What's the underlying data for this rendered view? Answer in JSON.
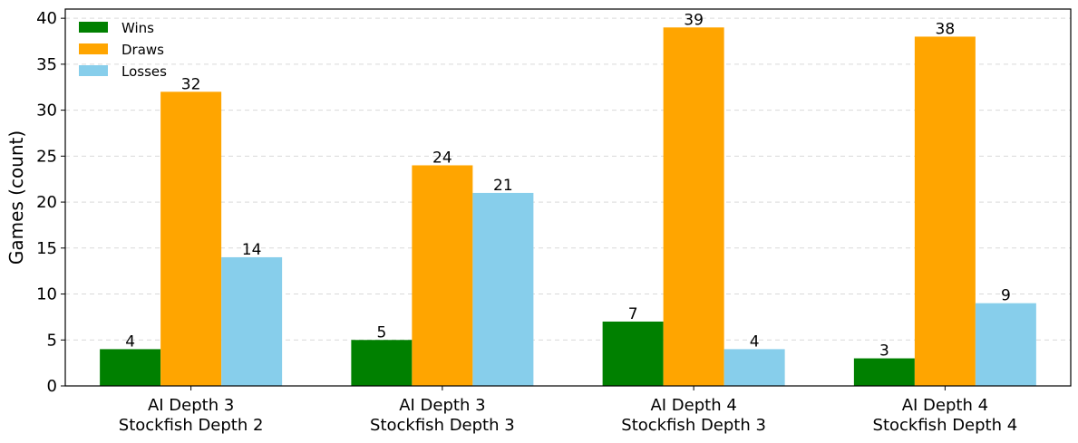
{
  "chart_data": {
    "type": "bar",
    "title": "",
    "xlabel": "",
    "ylabel": "Games (count)",
    "ylim": [
      0,
      41
    ],
    "yticks": [
      0,
      5,
      10,
      15,
      20,
      25,
      30,
      35,
      40
    ],
    "grid": "y-dashed",
    "legend_position": "top-left",
    "categories": [
      [
        "AI Depth 3",
        "Stockfish Depth 2"
      ],
      [
        "AI Depth 3",
        "Stockfish Depth 3"
      ],
      [
        "AI Depth 4",
        "Stockfish Depth 3"
      ],
      [
        "AI Depth 4",
        "Stockfish Depth 4"
      ]
    ],
    "series": [
      {
        "name": "Wins",
        "color": "#008000",
        "values": [
          4,
          5,
          7,
          3
        ]
      },
      {
        "name": "Draws",
        "color": "#ffa500",
        "values": [
          32,
          24,
          39,
          38
        ]
      },
      {
        "name": "Losses",
        "color": "#87ceeb",
        "values": [
          14,
          21,
          4,
          9
        ]
      }
    ]
  }
}
